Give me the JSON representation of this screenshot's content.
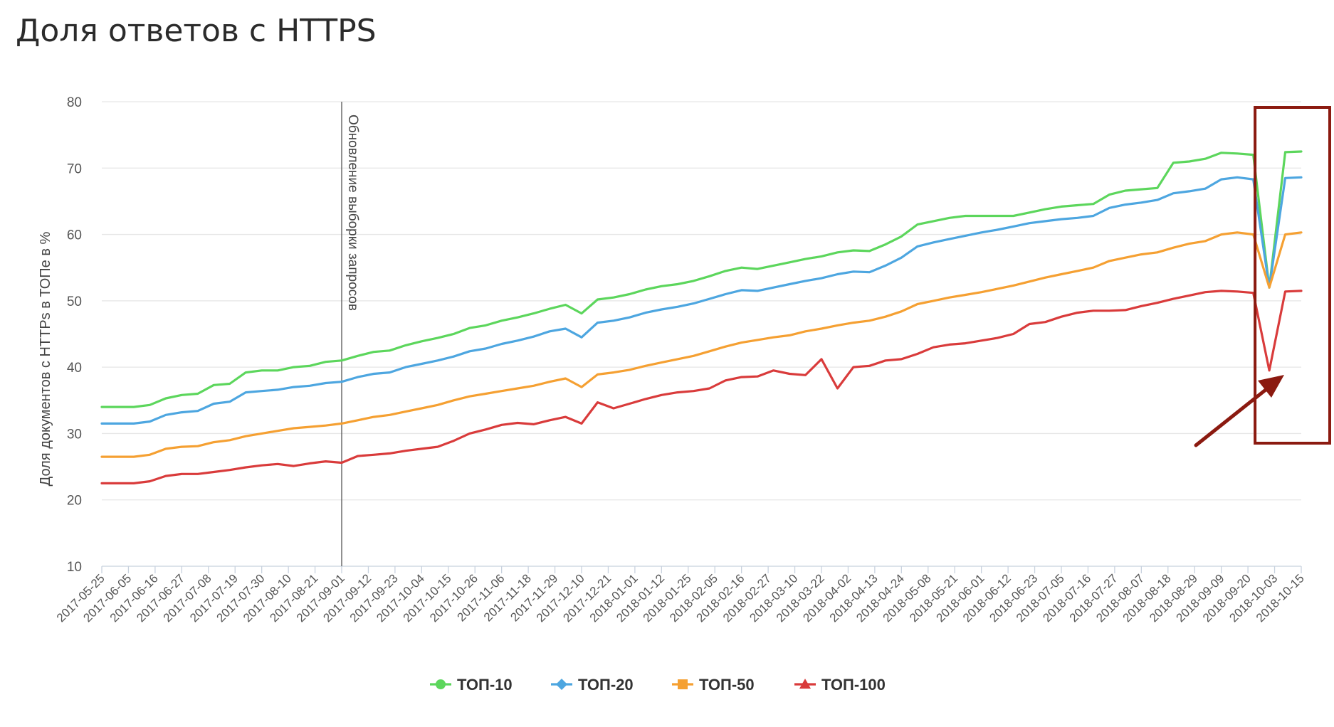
{
  "chart_data": {
    "type": "line",
    "title": "Доля ответов с HTTPS",
    "xlabel": "",
    "ylabel": "Доля документов с HTTPs в ТОПе в %",
    "ylim": [
      10,
      80
    ],
    "yticks": [
      10,
      20,
      30,
      40,
      50,
      60,
      70,
      80
    ],
    "grid": true,
    "legend_position": "bottom-center",
    "x_tick_labels": [
      "2017-05-25",
      "2017-06-05",
      "2017-06-16",
      "2017-06-27",
      "2017-07-08",
      "2017-07-19",
      "2017-07-30",
      "2017-08-10",
      "2017-08-21",
      "2017-09-01",
      "2017-09-12",
      "2017-09-23",
      "2017-10-04",
      "2017-10-15",
      "2017-10-26",
      "2017-11-06",
      "2017-11-18",
      "2017-11-29",
      "2017-12-10",
      "2017-12-21",
      "2018-01-01",
      "2018-01-12",
      "2018-01-25",
      "2018-02-05",
      "2018-02-16",
      "2018-02-27",
      "2018-03-10",
      "2018-03-22",
      "2018-04-02",
      "2018-04-13",
      "2018-04-24",
      "2018-05-08",
      "2018-05-21",
      "2018-06-01",
      "2018-06-12",
      "2018-06-23",
      "2018-07-05",
      "2018-07-16",
      "2018-07-27",
      "2018-08-07",
      "2018-08-18",
      "2018-08-29",
      "2018-09-09",
      "2018-09-20",
      "2018-10-03",
      "2018-10-15"
    ],
    "annotations": [
      {
        "label": "Обновление выборки запросов",
        "x": "2017-09-01"
      }
    ],
    "highlight": {
      "color": "#8b1a10",
      "x_from": "2018-09-20",
      "x_to": "2018-10-15"
    },
    "series": [
      {
        "name": "ТОП-10",
        "color": "#5cd65c",
        "marker": "circle",
        "values": [
          34,
          34,
          34,
          34.3,
          35.3,
          35.8,
          36,
          37.3,
          37.5,
          39.2,
          39.5,
          39.5,
          40,
          40.2,
          40.8,
          41,
          41.7,
          42.3,
          42.5,
          43.3,
          43.9,
          44.4,
          45,
          45.9,
          46.3,
          47,
          47.5,
          48.1,
          48.8,
          49.4,
          48.1,
          50.2,
          50.5,
          51,
          51.7,
          52.2,
          52.5,
          53,
          53.7,
          54.5,
          55,
          54.8,
          55.3,
          55.8,
          56.3,
          56.7,
          57.3,
          57.6,
          57.5,
          58.5,
          59.7,
          61.5,
          62,
          62.5,
          62.8,
          62.8,
          62.8,
          62.8,
          63.3,
          63.8,
          64.2,
          64.4,
          64.6,
          66,
          66.6,
          66.8,
          67,
          70.8,
          71,
          71.4,
          72.3,
          72.2,
          72,
          52,
          72.4,
          72.5
        ]
      },
      {
        "name": "ТОП-20",
        "color": "#4da6e0",
        "marker": "diamond",
        "values": [
          31.5,
          31.5,
          31.5,
          31.8,
          32.8,
          33.2,
          33.4,
          34.5,
          34.8,
          36.2,
          36.4,
          36.6,
          37,
          37.2,
          37.6,
          37.8,
          38.5,
          39,
          39.2,
          40,
          40.5,
          41,
          41.6,
          42.4,
          42.8,
          43.5,
          44,
          44.6,
          45.4,
          45.8,
          44.5,
          46.7,
          47,
          47.5,
          48.2,
          48.7,
          49.1,
          49.6,
          50.3,
          51,
          51.6,
          51.5,
          52,
          52.5,
          53,
          53.4,
          54,
          54.4,
          54.3,
          55.3,
          56.5,
          58.2,
          58.8,
          59.3,
          59.8,
          60.3,
          60.7,
          61.2,
          61.7,
          62,
          62.3,
          62.5,
          62.8,
          64,
          64.5,
          64.8,
          65.2,
          66.2,
          66.5,
          66.9,
          68.3,
          68.6,
          68.3,
          52,
          68.5,
          68.6
        ]
      },
      {
        "name": "ТОП-50",
        "color": "#f5a032",
        "marker": "square",
        "values": [
          26.5,
          26.5,
          26.5,
          26.8,
          27.7,
          28,
          28.1,
          28.7,
          29,
          29.6,
          30,
          30.4,
          30.8,
          31,
          31.2,
          31.5,
          32,
          32.5,
          32.8,
          33.3,
          33.8,
          34.3,
          35,
          35.6,
          36,
          36.4,
          36.8,
          37.2,
          37.8,
          38.3,
          37,
          38.9,
          39.2,
          39.6,
          40.2,
          40.7,
          41.2,
          41.7,
          42.4,
          43.1,
          43.7,
          44.1,
          44.5,
          44.8,
          45.4,
          45.8,
          46.3,
          46.7,
          47,
          47.6,
          48.4,
          49.5,
          50,
          50.5,
          50.9,
          51.3,
          51.8,
          52.3,
          52.9,
          53.5,
          54,
          54.5,
          55,
          56,
          56.5,
          57,
          57.3,
          58,
          58.6,
          59,
          60,
          60.3,
          60,
          52,
          60,
          60.3
        ]
      },
      {
        "name": "ТОП-100",
        "color": "#d93b3b",
        "marker": "triangle",
        "values": [
          22.5,
          22.5,
          22.5,
          22.8,
          23.6,
          23.9,
          23.9,
          24.2,
          24.5,
          24.9,
          25.2,
          25.4,
          25.1,
          25.5,
          25.8,
          25.6,
          26.6,
          26.8,
          27,
          27.4,
          27.7,
          28,
          28.9,
          30,
          30.6,
          31.3,
          31.6,
          31.4,
          32,
          32.5,
          31.5,
          34.7,
          33.8,
          34.5,
          35.2,
          35.8,
          36.2,
          36.4,
          36.8,
          38,
          38.5,
          38.6,
          39.5,
          39,
          38.8,
          41.2,
          36.8,
          40,
          40.2,
          41,
          41.2,
          42,
          43,
          43.4,
          43.6,
          44,
          44.4,
          45,
          46.5,
          46.8,
          47.6,
          48.2,
          48.5,
          48.5,
          48.6,
          49.2,
          49.7,
          50.3,
          50.8,
          51.3,
          51.5,
          51.4,
          51.2,
          39.5,
          51.4,
          51.5
        ]
      }
    ]
  }
}
